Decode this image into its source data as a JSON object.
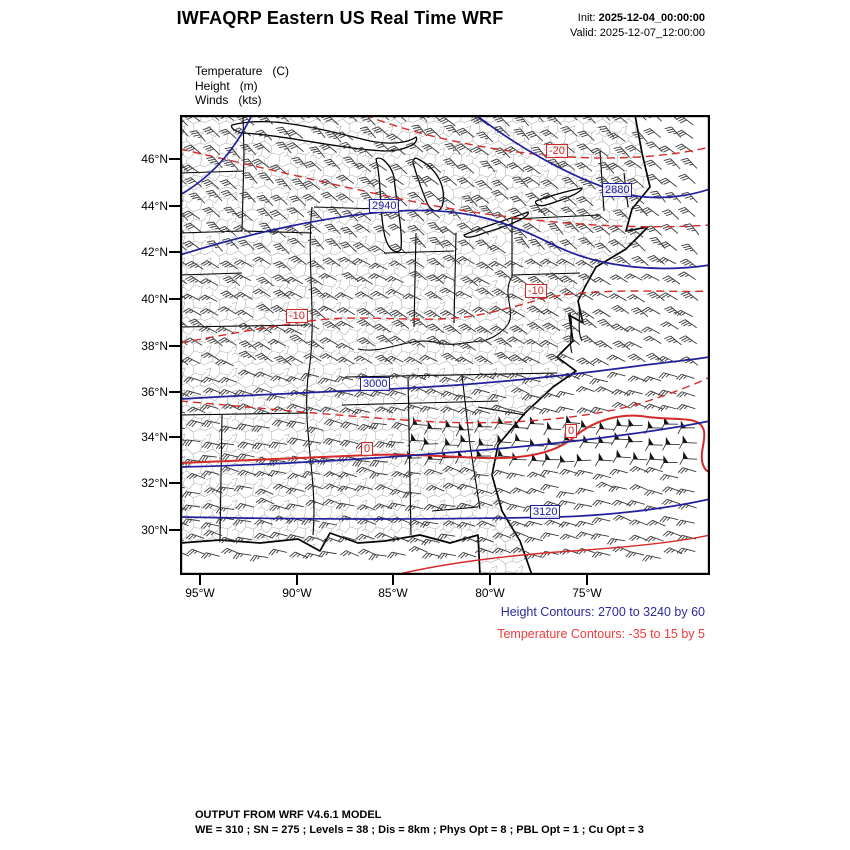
{
  "header": {
    "title": "IWFAQRP Eastern US Real Time WRF",
    "init_label": "Init:",
    "init_value": "2025-12-04_00:00:00",
    "valid_label": "Valid:",
    "valid_value": "2025-12-07_12:00:00"
  },
  "legend": {
    "items": [
      {
        "name": "Temperature",
        "unit": "(C)"
      },
      {
        "name": "Height",
        "unit": "(m)"
      },
      {
        "name": "Winds",
        "unit": "(kts)"
      }
    ]
  },
  "map": {
    "lat_labels": [
      "46°N",
      "44°N",
      "42°N",
      "40°N",
      "38°N",
      "36°N",
      "34°N",
      "32°N",
      "30°N"
    ],
    "lon_labels": [
      "95°W",
      "90°W",
      "85°W",
      "80°W",
      "75°W"
    ],
    "contour_labels": [
      {
        "text": "-20",
        "type": "temperature"
      },
      {
        "text": "2880",
        "type": "height"
      },
      {
        "text": "2940",
        "type": "height"
      },
      {
        "text": "-10",
        "type": "temperature"
      },
      {
        "text": "-10",
        "type": "temperature"
      },
      {
        "text": "3000",
        "type": "height"
      },
      {
        "text": "0",
        "type": "temperature"
      },
      {
        "text": "0",
        "type": "temperature"
      },
      {
        "text": "3120",
        "type": "height"
      }
    ]
  },
  "contour_info": {
    "height": "Height Contours: 2700 to 3240 by 60",
    "temperature": "Temperature Contours: -35 to 15 by 5"
  },
  "footer": {
    "line1": "OUTPUT FROM WRF V4.6.1 MODEL",
    "line2": "WE = 310 ; SN = 275 ; Levels = 38 ; Dis = 8km ; Phys Opt = 8 ; PBL Opt = 1 ; Cu Opt = 3"
  },
  "colors": {
    "height_contour": "#20209c",
    "temperature_contour": "#d42a2a",
    "height_text": "#2a2a9e",
    "temperature_text": "#f03b3b"
  }
}
